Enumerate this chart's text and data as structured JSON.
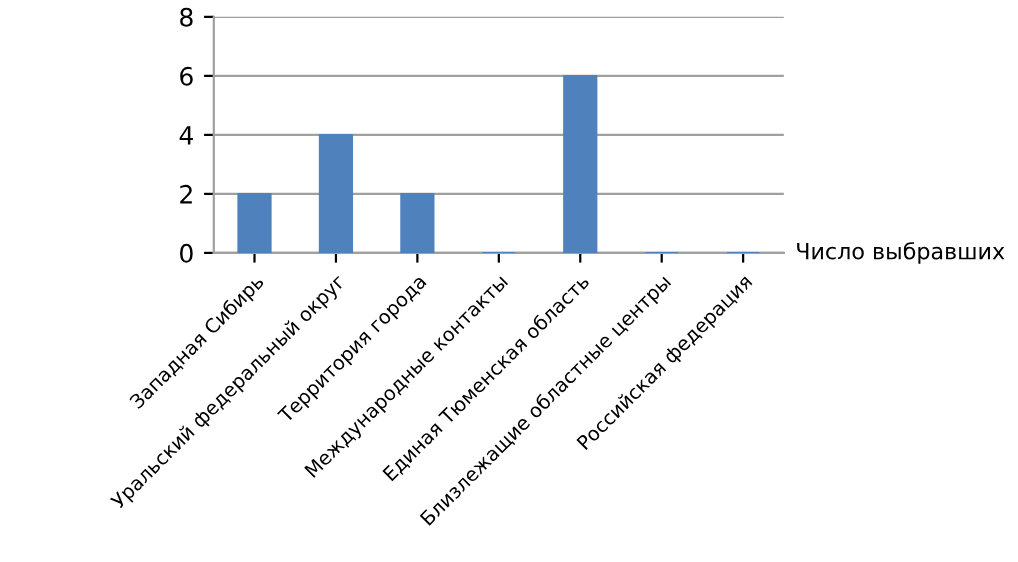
{
  "chart_data": {
    "type": "bar",
    "categories": [
      "Западная Сибирь",
      "Уральский федеральный округ",
      "Территория города",
      "Международные контакты",
      "Единая Тюменская область",
      "Близлежащие областные центры",
      "Российская федерация"
    ],
    "series": [
      {
        "name": "Число выбравших",
        "color": "#4f81bd",
        "values": [
          2,
          4,
          2,
          0,
          6,
          0,
          0
        ]
      }
    ],
    "ylim": [
      0,
      8
    ],
    "yticks": [
      0,
      2,
      4,
      6,
      8
    ],
    "grid": "y"
  }
}
